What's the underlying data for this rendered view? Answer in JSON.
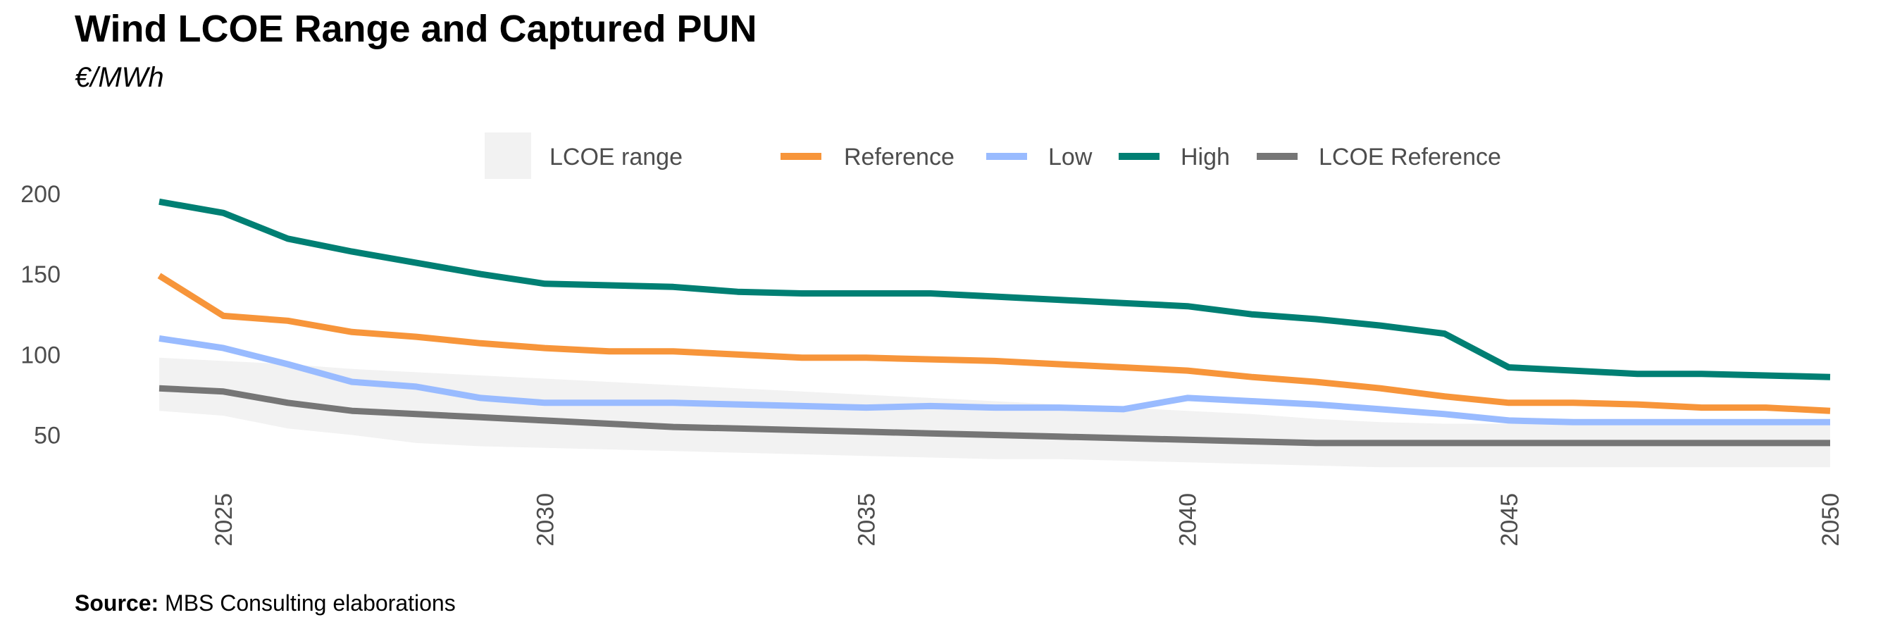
{
  "title": "Wind LCOE Range and Captured PUN",
  "subtitle": "€/MWh",
  "source": {
    "label": "Source:",
    "text": "MBS Consulting elaborations"
  },
  "chart_data": {
    "type": "line",
    "title": "Wind LCOE Range and Captured PUN",
    "subtitle": "€/MWh",
    "xlabel": "",
    "ylabel": "",
    "x": [
      2024,
      2025,
      2026,
      2027,
      2028,
      2029,
      2030,
      2031,
      2032,
      2033,
      2034,
      2035,
      2036,
      2037,
      2038,
      2039,
      2040,
      2041,
      2042,
      2043,
      2044,
      2045,
      2046,
      2047,
      2048,
      2049,
      2050
    ],
    "xlim": [
      2024,
      2050
    ],
    "xticks": [
      2025,
      2030,
      2035,
      2040,
      2045,
      2050
    ],
    "xtick_labels": [
      "2025",
      "2030",
      "2035",
      "2040",
      "2045",
      "2050"
    ],
    "ylim": [
      20,
      210
    ],
    "yticks": [
      50,
      100,
      150,
      200
    ],
    "ytick_labels": [
      "50",
      "100",
      "150",
      "200"
    ],
    "grid": false,
    "legend_position": "top",
    "band": {
      "name": "LCOE range",
      "color": "#f2f2f2",
      "lower": [
        65,
        62,
        54,
        50,
        45,
        43,
        42,
        41,
        40,
        39,
        38,
        37,
        36,
        35,
        35,
        34,
        33,
        32,
        31,
        30,
        30,
        30,
        30,
        30,
        30,
        30,
        30
      ],
      "upper": [
        98,
        96,
        94,
        91,
        89,
        87,
        85,
        83,
        81,
        79,
        77,
        75,
        73,
        71,
        69,
        67,
        65,
        63,
        60,
        58,
        57,
        57,
        57,
        57,
        57,
        57,
        57
      ]
    },
    "series": [
      {
        "name": "Reference",
        "color": "#f7953a",
        "values": [
          149,
          124,
          121,
          114,
          111,
          107,
          104,
          102,
          102,
          100,
          98,
          98,
          97,
          96,
          94,
          92,
          90,
          86,
          83,
          79,
          74,
          70,
          70,
          69,
          67,
          67,
          65
        ]
      },
      {
        "name": "Low",
        "color": "#99bbff",
        "values": [
          110,
          104,
          94,
          83,
          80,
          73,
          70,
          70,
          70,
          69,
          68,
          67,
          68,
          67,
          67,
          66,
          73,
          71,
          69,
          66,
          63,
          59,
          58,
          58,
          58,
          58,
          58
        ]
      },
      {
        "name": "High",
        "color": "#007f73",
        "values": [
          195,
          188,
          172,
          164,
          157,
          150,
          144,
          143,
          142,
          139,
          138,
          138,
          138,
          136,
          134,
          132,
          130,
          125,
          122,
          118,
          113,
          92,
          90,
          88,
          88,
          87,
          86
        ]
      },
      {
        "name": "LCOE Reference",
        "color": "#767676",
        "values": [
          79,
          77,
          70,
          65,
          63,
          61,
          59,
          57,
          55,
          54,
          53,
          52,
          51,
          50,
          49,
          48,
          47,
          46,
          45,
          45,
          45,
          45,
          45,
          45,
          45,
          45,
          45
        ]
      }
    ]
  }
}
